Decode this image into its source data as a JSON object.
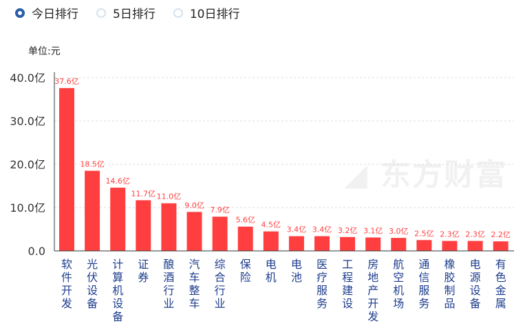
{
  "tabs": [
    {
      "label": "今日排行",
      "selected": true
    },
    {
      "label": "5日排行",
      "selected": false
    },
    {
      "label": "10日排行",
      "selected": false
    }
  ],
  "unit_label": "单位:元",
  "watermark": "东方财富",
  "chart_data": {
    "type": "bar",
    "categories": [
      "软件开发",
      "光伏设备",
      "计算机设备",
      "证券",
      "酿酒行业",
      "汽车整车",
      "综合行业",
      "保险",
      "电机",
      "电池",
      "医疗服务",
      "工程建设",
      "房地产开发",
      "航空机场",
      "通信服务",
      "橡胶制品",
      "电源设备",
      "有色金属"
    ],
    "values": [
      37.6,
      18.5,
      14.6,
      11.7,
      11.0,
      9.0,
      7.9,
      5.6,
      4.5,
      3.4,
      3.4,
      3.2,
      3.1,
      3.0,
      2.5,
      2.3,
      2.3,
      2.2
    ],
    "data_labels": [
      "37.6亿",
      "18.5亿",
      "14.6亿",
      "11.7亿",
      "11.0亿",
      "9.0亿",
      "7.9亿",
      "5.6亿",
      "4.5亿",
      "3.4亿",
      "3.4亿",
      "3.2亿",
      "3.1亿",
      "3.0亿",
      "2.5亿",
      "2.3亿",
      "2.3亿",
      "2.2亿"
    ],
    "yticks": [
      "0.0",
      "10.0亿",
      "20.0亿",
      "30.0亿",
      "40.0亿"
    ],
    "ylim": [
      0,
      40
    ],
    "grid": true,
    "colors": {
      "bar": "#ff3f3f",
      "label": "#ff3f3f",
      "category": "#1c3c8c"
    }
  }
}
